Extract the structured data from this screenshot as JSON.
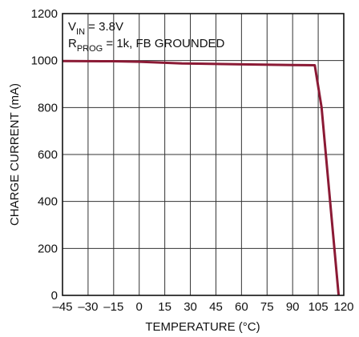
{
  "chart_data": {
    "type": "line",
    "xlabel": "TEMPERATURE (°C)",
    "ylabel": "CHARGE CURRENT (mA)",
    "xlim": [
      -45,
      120
    ],
    "ylim": [
      0,
      1200
    ],
    "x_ticks": [
      -45,
      -30,
      -15,
      0,
      15,
      30,
      45,
      60,
      75,
      90,
      105,
      120
    ],
    "x_tick_labels": [
      "–45",
      "–30",
      "–15",
      "0",
      "15",
      "30",
      "45",
      "60",
      "75",
      "90",
      "105",
      "120"
    ],
    "y_ticks": [
      0,
      200,
      400,
      600,
      800,
      1000,
      1200
    ],
    "y_tick_labels": [
      "0",
      "200",
      "400",
      "600",
      "800",
      "1000",
      "1200"
    ],
    "grid": true,
    "annotations": [
      {
        "main": "V",
        "sub": "IN",
        "rest": " = 3.8V"
      },
      {
        "main": "R",
        "sub": "PROG",
        "rest": " = 1k, FB GROUNDED"
      }
    ],
    "series": [
      {
        "color": "#8b1a35",
        "x": [
          -45,
          -15,
          0,
          25,
          60,
          90,
          103,
          107,
          117
        ],
        "y": [
          998,
          997,
          995,
          988,
          984,
          981,
          980,
          800,
          0
        ]
      }
    ]
  }
}
